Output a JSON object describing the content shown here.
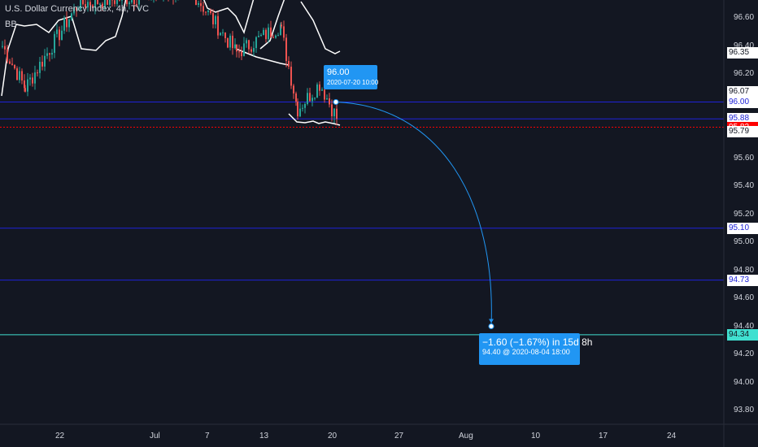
{
  "header": {
    "title": "U.S. Dollar Currency Index, 4h, TVC",
    "indicator": "BB"
  },
  "colors": {
    "background": "#131722",
    "axis_text": "#d1d4dc",
    "candle_up": "#26a69a",
    "candle_down": "#ef5350",
    "bollinger": "#ffffff",
    "hline_blue": "#1e22d9",
    "hline_teal": "#40e0d0",
    "current_price": "#ff0000",
    "tooltip": "#2196f3"
  },
  "chart_data": {
    "type": "candlestick",
    "symbol": "DXY",
    "y_ticks": [
      "96.60",
      "96.40",
      "96.20",
      "96.00",
      "95.80",
      "95.60",
      "95.40",
      "95.20",
      "95.00",
      "94.80",
      "94.60",
      "94.40",
      "94.20",
      "94.00",
      "93.80"
    ],
    "x_ticks": [
      "22",
      "Jul",
      "7",
      "13",
      "20",
      "27",
      "Aug",
      "10",
      "17",
      "24"
    ],
    "price_tags": [
      {
        "label": "96.35",
        "price": 96.35,
        "style": "white"
      },
      {
        "label": "96.07",
        "price": 96.07,
        "style": "white"
      },
      {
        "label": "96.00",
        "price": 96.0,
        "style": "blue"
      },
      {
        "label": "95.88",
        "price": 95.88,
        "style": "blue"
      },
      {
        "label": "95.82",
        "price": 95.82,
        "style": "red"
      },
      {
        "label": "95.79",
        "price": 95.79,
        "style": "white"
      },
      {
        "label": "95.10",
        "price": 95.1,
        "style": "blue"
      },
      {
        "label": "94.73",
        "price": 94.73,
        "style": "blue"
      },
      {
        "label": "94.34",
        "price": 94.34,
        "style": "teal"
      }
    ],
    "horizontal_lines": [
      {
        "price": 96.0,
        "color": "#1e22d9",
        "dashed": false
      },
      {
        "price": 95.88,
        "color": "#1e22d9",
        "dashed": false
      },
      {
        "price": 95.1,
        "color": "#1e22d9",
        "dashed": false
      },
      {
        "price": 94.73,
        "color": "#1e22d9",
        "dashed": false
      },
      {
        "price": 94.34,
        "color": "#40e0d0",
        "dashed": false
      },
      {
        "price": 95.82,
        "color": "#ff0000",
        "dashed": true
      }
    ],
    "projection": {
      "start": {
        "price": 96.0,
        "date": "2020-07-20 10:00"
      },
      "end": {
        "price": 94.4,
        "date": "2020-08-04 18:00"
      },
      "start_label": "96.00",
      "start_date_label": "2020-07-20 10:00",
      "change_label": "−1.60 (−1.67%) in 15d 8h",
      "end_label": "94.40 @ 2020-08-04  18:00"
    }
  }
}
